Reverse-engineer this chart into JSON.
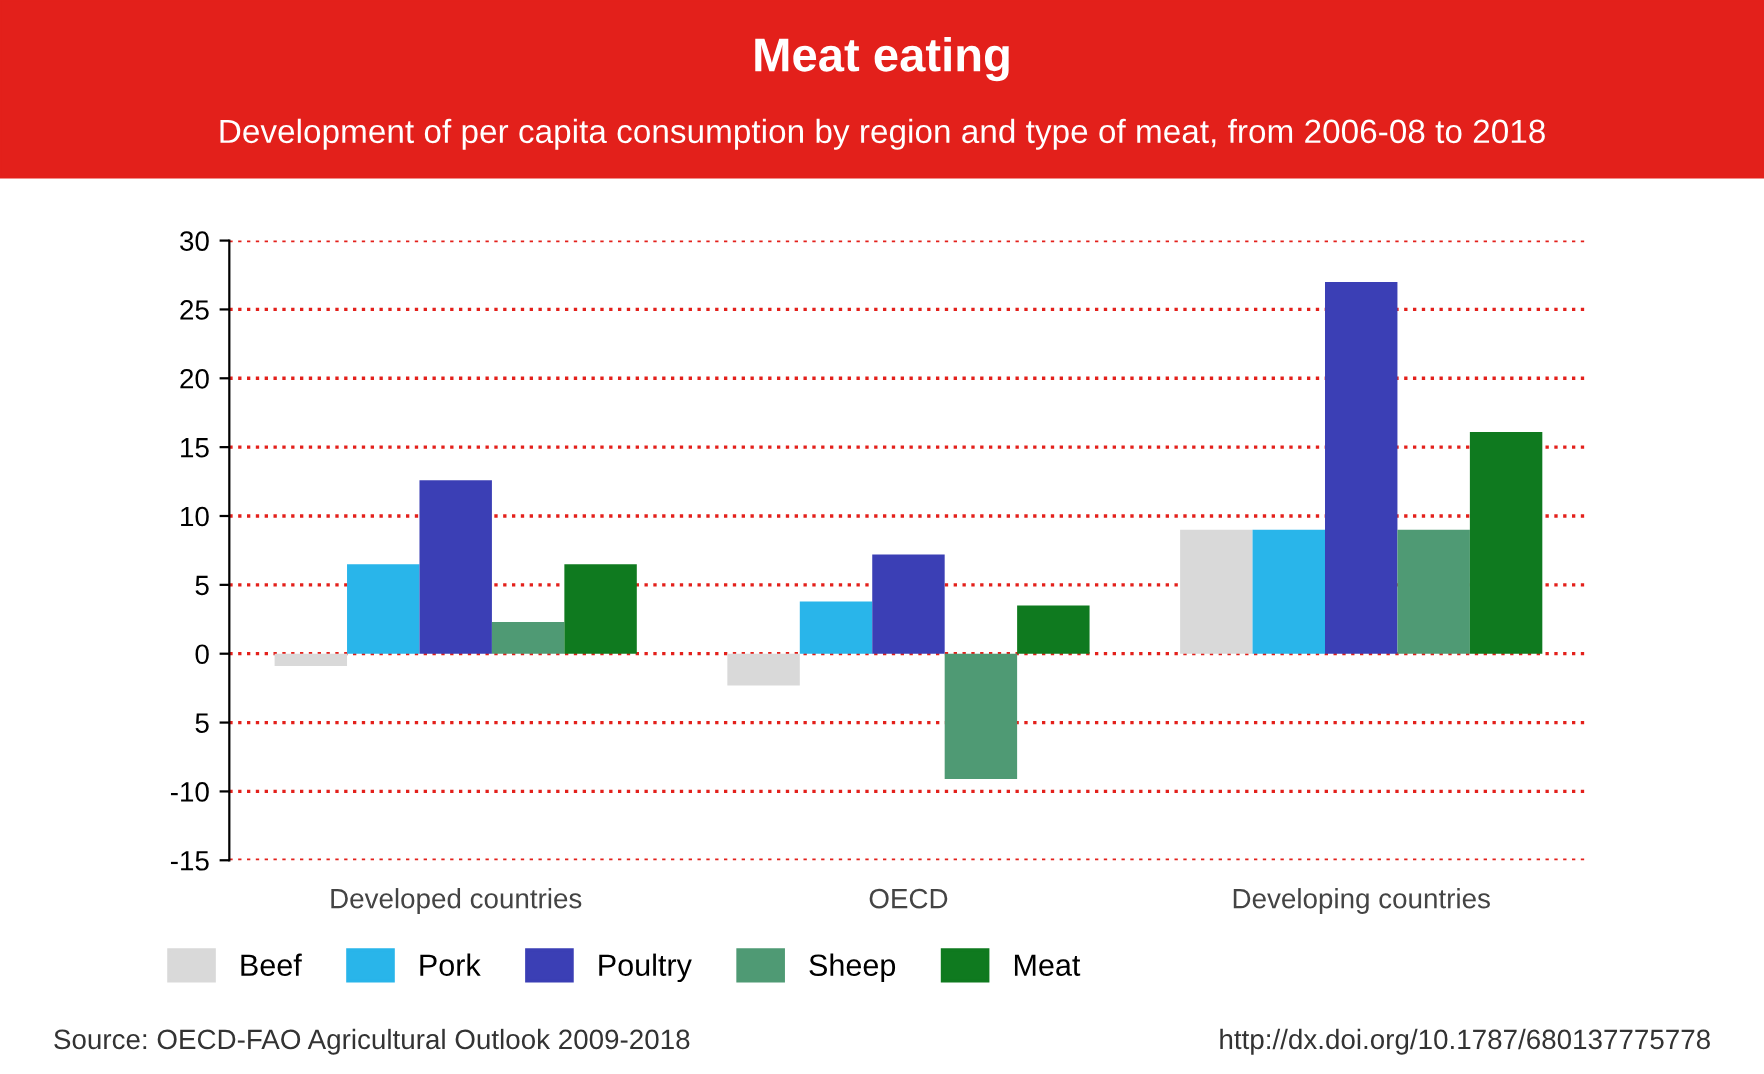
{
  "chart_data": {
    "type": "bar",
    "title": "Meat eating",
    "subtitle": "Development of per capita consumption by region and type of meat, from 2006-08 to 2018",
    "categories": [
      "Developed countries",
      "OECD",
      "Developing countries"
    ],
    "series": [
      {
        "name": "Beef",
        "color": "#d9d9d9",
        "values": [
          -0.9,
          -2.3,
          9.0
        ]
      },
      {
        "name": "Pork",
        "color": "#29b5ea",
        "values": [
          6.5,
          3.8,
          9.0
        ]
      },
      {
        "name": "Poultry",
        "color": "#3b3fb5",
        "values": [
          12.6,
          7.2,
          27.0
        ]
      },
      {
        "name": "Sheep",
        "color": "#4f9a74",
        "values": [
          2.3,
          -9.1,
          9.0
        ]
      },
      {
        "name": "Meat",
        "color": "#0f7a1f",
        "values": [
          6.5,
          3.5,
          16.1
        ]
      }
    ],
    "ylim": [
      -15,
      30
    ],
    "yticks": [
      30,
      25,
      20,
      15,
      10,
      5,
      0,
      {
        "value": -5,
        "label": "5"
      },
      -10,
      -15
    ],
    "grid": "y",
    "legend": "bottom",
    "annotations": [
      "Source: OECD-FAO Agricultural Outlook 2009-2018",
      "http://dx.doi.org/10.1787/680137775778"
    ]
  }
}
